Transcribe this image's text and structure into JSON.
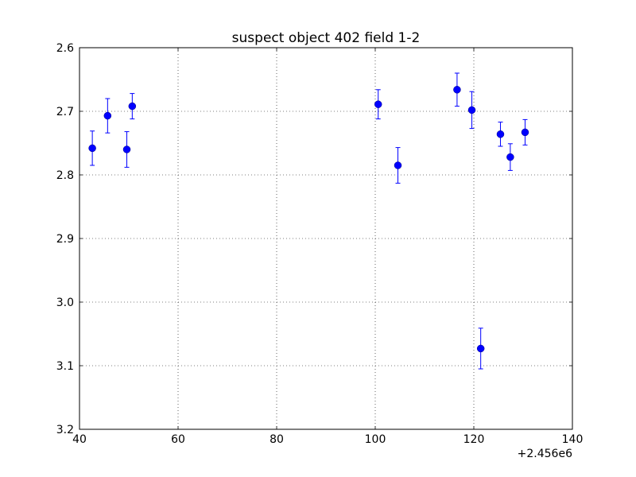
{
  "chart_data": {
    "type": "scatter",
    "title": "suspect object 402 field 1-2",
    "xlabel": "",
    "ylabel": "",
    "x_offset_label": "+2.456e6",
    "xlim": [
      40,
      140
    ],
    "ylim": [
      2.6,
      3.2
    ],
    "y_inverted": true,
    "x_ticks": [
      40,
      60,
      80,
      100,
      120,
      140
    ],
    "x_tick_labels": [
      "40",
      "60",
      "80",
      "100",
      "120",
      "140"
    ],
    "y_ticks": [
      2.6,
      2.7,
      2.8,
      2.9,
      3.0,
      3.1,
      3.2
    ],
    "y_tick_labels": [
      "2.6",
      "2.7",
      "2.8",
      "2.9",
      "3.0",
      "3.1",
      "3.2"
    ],
    "grid": true,
    "marker_color": "#0000ff",
    "series": [
      {
        "x": [
          42.6,
          45.7,
          49.6,
          50.7,
          100.6,
          104.6,
          116.6,
          119.6,
          121.4,
          125.4,
          127.4,
          130.4
        ],
        "y": [
          2.758,
          2.707,
          2.76,
          2.692,
          2.689,
          2.785,
          2.666,
          2.698,
          3.073,
          2.736,
          2.772,
          2.733
        ],
        "err": [
          0.027,
          0.027,
          0.028,
          0.02,
          0.023,
          0.028,
          0.026,
          0.029,
          0.032,
          0.019,
          0.021,
          0.02
        ]
      }
    ]
  }
}
